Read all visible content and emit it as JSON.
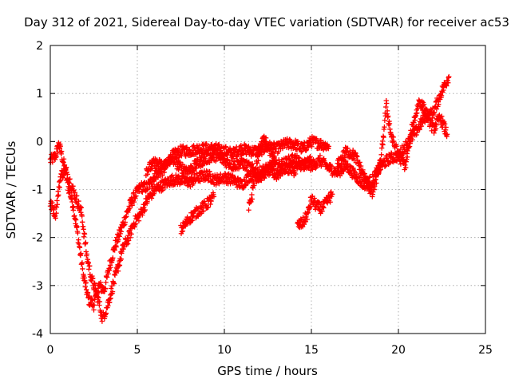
{
  "chart_data": {
    "type": "scatter",
    "marker": "plus",
    "title": "Day 312 of 2021, Sidereal Day-to-day VTEC variation (SDTVAR) for receiver ac53",
    "xlabel": "GPS time / hours",
    "ylabel": "SDTVAR / TECUs",
    "xlim": [
      0,
      25
    ],
    "ylim": [
      -4,
      2
    ],
    "xticks": [
      0,
      5,
      10,
      15,
      20,
      25
    ],
    "yticks": [
      -4,
      -3,
      -2,
      -1,
      0,
      1,
      2
    ],
    "grid": true,
    "series_color": "#ff0000",
    "tracks": [
      {
        "name": "track-1",
        "x": [
          0.0,
          0.3,
          0.5,
          0.8,
          1.0,
          1.3,
          1.6,
          1.9,
          2.2,
          2.5,
          2.8,
          3.1,
          3.4,
          3.7,
          4.0,
          4.3,
          4.6,
          4.9,
          5.2,
          5.6,
          6.0,
          6.5,
          7.0,
          7.5,
          8.0,
          8.5,
          9.0,
          9.5,
          10.0,
          10.5,
          11.0,
          11.5,
          12.0,
          12.5,
          13.0,
          13.5,
          14.0,
          14.5,
          15.0,
          15.5,
          16.0
        ],
        "y": [
          -0.4,
          -0.3,
          -0.05,
          -0.5,
          -0.9,
          -1.3,
          -2.0,
          -2.8,
          -3.3,
          -3.4,
          -3.0,
          -3.1,
          -2.6,
          -2.2,
          -1.9,
          -1.6,
          -1.3,
          -1.1,
          -0.95,
          -0.95,
          -0.7,
          -0.6,
          -0.3,
          -0.2,
          -0.2,
          -0.15,
          -0.15,
          -0.15,
          -0.2,
          -0.25,
          -0.15,
          -0.2,
          -0.2,
          -0.1,
          -0.15,
          -0.05,
          -0.05,
          -0.15,
          0.0,
          -0.05,
          -0.1
        ]
      },
      {
        "name": "track-2",
        "x": [
          0.0,
          0.3,
          0.6,
          0.9,
          1.2,
          1.5,
          1.8,
          2.1,
          2.4,
          2.7,
          3.0,
          3.3,
          3.6,
          3.9,
          4.2,
          4.5,
          4.8,
          5.2,
          5.6,
          6.0,
          6.5,
          7.0,
          7.5,
          8.0,
          8.5,
          9.0,
          9.5,
          10.0,
          10.5,
          11.0,
          11.5,
          12.0,
          12.5,
          13.0,
          13.5,
          14.0,
          14.5,
          15.0,
          15.5,
          16.0,
          16.5,
          17.0,
          17.5,
          18.0,
          18.5,
          19.0,
          19.5,
          20.0,
          20.5,
          21.0,
          21.5,
          22.0,
          22.5,
          22.9
        ],
        "y": [
          -1.3,
          -1.5,
          -0.7,
          -0.6,
          -0.9,
          -1.2,
          -1.5,
          -2.4,
          -2.9,
          -3.2,
          -3.7,
          -3.4,
          -3.0,
          -2.6,
          -2.2,
          -2.0,
          -1.7,
          -1.5,
          -1.2,
          -1.0,
          -0.9,
          -0.8,
          -0.8,
          -0.85,
          -0.75,
          -0.7,
          -0.8,
          -0.75,
          -0.8,
          -0.9,
          -0.7,
          -0.75,
          -0.6,
          -0.7,
          -0.55,
          -0.6,
          -0.45,
          -0.5,
          -0.4,
          -0.55,
          -0.65,
          -0.5,
          -0.7,
          -0.9,
          -0.8,
          -0.5,
          -0.35,
          -0.3,
          -0.05,
          0.2,
          0.5,
          0.6,
          1.05,
          1.35
        ]
      },
      {
        "name": "track-3",
        "x": [
          5.5,
          6.0,
          6.5,
          7.0,
          7.5,
          8.0,
          8.5,
          9.0,
          9.5,
          10.0,
          10.5,
          11.0,
          11.5,
          12.0,
          12.5,
          13.0,
          13.5,
          14.0,
          14.5,
          15.0
        ],
        "y": [
          -0.6,
          -0.45,
          -0.5,
          -0.35,
          -0.55,
          -0.6,
          -0.45,
          -0.35,
          -0.3,
          -0.4,
          -0.5,
          -0.45,
          -0.55,
          -0.65,
          -0.55,
          -0.5,
          -0.45,
          -0.35,
          -0.5,
          -0.4
        ]
      },
      {
        "name": "track-4",
        "x": [
          7.5,
          8.0,
          8.5,
          9.0,
          9.4
        ],
        "y": [
          -1.85,
          -1.6,
          -1.45,
          -1.3,
          -1.15
        ]
      },
      {
        "name": "track-5",
        "x": [
          11.4,
          11.6,
          11.8,
          12.0,
          12.3,
          12.6,
          12.9
        ],
        "y": [
          -1.4,
          -1.1,
          -0.6,
          -0.2,
          0.05,
          -0.2,
          -0.4
        ]
      },
      {
        "name": "track-6",
        "x": [
          14.2,
          14.5,
          14.8,
          15.0,
          15.3,
          15.6,
          15.9,
          16.2
        ],
        "y": [
          -1.75,
          -1.7,
          -1.5,
          -1.2,
          -1.35,
          -1.4,
          -1.25,
          -1.1
        ]
      },
      {
        "name": "track-7",
        "x": [
          16.5,
          17.0,
          17.5,
          18.0,
          18.5,
          19.0,
          19.3,
          19.6,
          20.0,
          20.4,
          20.8,
          21.2,
          21.6,
          22.0,
          22.4,
          22.8
        ],
        "y": [
          -0.5,
          -0.2,
          -0.3,
          -0.7,
          -1.1,
          -0.4,
          0.75,
          0.1,
          -0.3,
          -0.5,
          0.3,
          0.85,
          0.6,
          0.25,
          0.5,
          0.15
        ]
      }
    ]
  }
}
